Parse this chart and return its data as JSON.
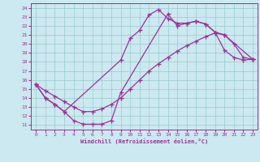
{
  "bg_color": "#cce8f0",
  "line_color": "#993399",
  "grid_color": "#99cccc",
  "xlabel": "Windchill (Refroidissement éolien,°C)",
  "xlim": [
    -0.5,
    23.5
  ],
  "ylim": [
    10.5,
    24.5
  ],
  "xticks": [
    0,
    1,
    2,
    3,
    4,
    5,
    6,
    7,
    8,
    9,
    10,
    11,
    12,
    13,
    14,
    15,
    16,
    17,
    18,
    19,
    20,
    21,
    22,
    23
  ],
  "yticks": [
    11,
    12,
    13,
    14,
    15,
    16,
    17,
    18,
    19,
    20,
    21,
    22,
    23,
    24
  ],
  "curve_upper_x": [
    0,
    1,
    2,
    3,
    9,
    10,
    11,
    12,
    13,
    14,
    15,
    16,
    17,
    18,
    19,
    20,
    23
  ],
  "curve_upper_y": [
    15.5,
    14.0,
    13.3,
    12.5,
    18.2,
    20.6,
    21.5,
    23.2,
    23.8,
    22.8,
    22.3,
    22.3,
    22.5,
    22.2,
    21.3,
    21.0,
    18.3
  ],
  "curve_lower_x": [
    0,
    1,
    2,
    3,
    4,
    5,
    6,
    7,
    8,
    9,
    14,
    15,
    16,
    17,
    18,
    19,
    20,
    21,
    22,
    23
  ],
  "curve_lower_y": [
    15.5,
    14.0,
    13.3,
    12.5,
    11.5,
    11.1,
    11.1,
    11.1,
    11.5,
    14.6,
    23.3,
    22.0,
    22.3,
    22.5,
    22.2,
    21.3,
    19.3,
    18.5,
    18.2,
    18.3
  ],
  "curve_diag_x": [
    0,
    1,
    2,
    3,
    4,
    5,
    6,
    7,
    8,
    9,
    10,
    11,
    12,
    13,
    14,
    15,
    16,
    17,
    18,
    19,
    20,
    21,
    22,
    23
  ],
  "curve_diag_y": [
    15.5,
    14.8,
    14.2,
    13.6,
    13.0,
    12.5,
    12.5,
    12.8,
    13.3,
    14.0,
    15.0,
    16.0,
    17.0,
    17.8,
    18.5,
    19.2,
    19.8,
    20.3,
    20.8,
    21.2,
    21.0,
    20.0,
    18.5,
    18.3
  ]
}
